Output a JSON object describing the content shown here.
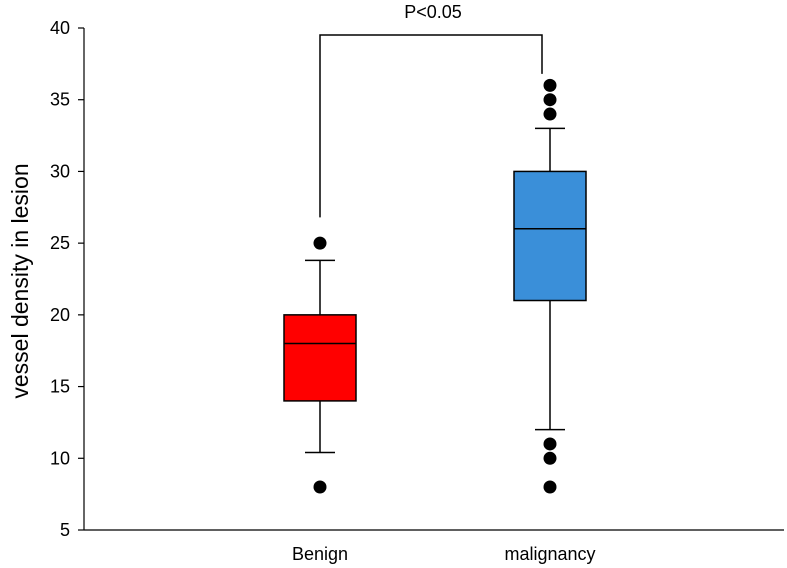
{
  "chart_data": {
    "type": "box",
    "title": "",
    "xlabel": "",
    "ylabel": "vessel density in lesion",
    "ylim": [
      5,
      40
    ],
    "yticks": [
      5,
      10,
      15,
      20,
      25,
      30,
      35,
      40
    ],
    "grid": false,
    "legend": "none",
    "categories": [
      "Benign",
      "malignancy"
    ],
    "boxes": [
      {
        "category": "Benign",
        "color": "#ff0000",
        "whisker_low": 10.4,
        "q1": 14,
        "median": 18,
        "q3": 20,
        "whisker_high": 23.8,
        "outliers": [
          25,
          8
        ]
      },
      {
        "category": "malignancy",
        "color": "#3a8fd9",
        "whisker_low": 12,
        "q1": 21,
        "median": 26,
        "q3": 30,
        "whisker_high": 33,
        "outliers": [
          36,
          35,
          34,
          11,
          10,
          8
        ]
      }
    ],
    "annotation": {
      "text": "P<0.05",
      "between": [
        "Benign",
        "malignancy"
      ],
      "bracket_y": 40,
      "left_drop_to": 26.8,
      "right_drop_to": 36.8
    }
  }
}
